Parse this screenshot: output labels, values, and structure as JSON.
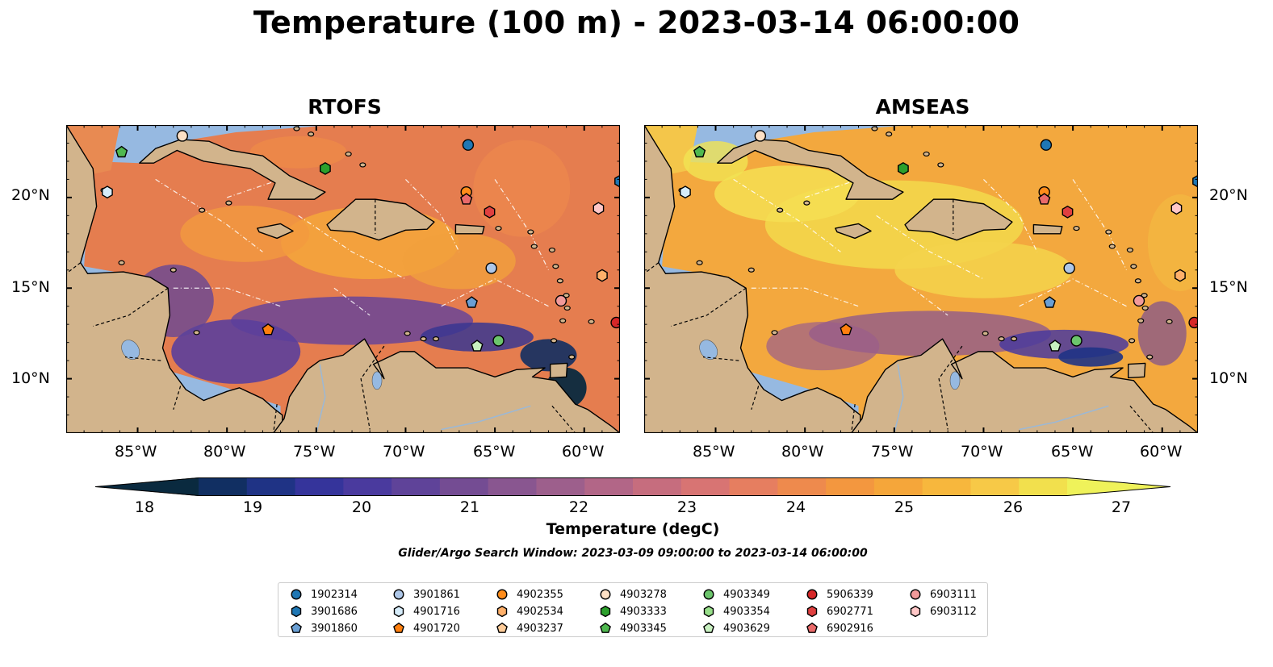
{
  "figure": {
    "title": "Temperature (100 m) - 2023-03-14 06:00:00",
    "search_window": "Glider/Argo Search Window: 2023-03-09 09:00:00 to 2023-03-14 06:00:00"
  },
  "map_extent": {
    "lon": [
      -89,
      -58
    ],
    "lat": [
      7,
      24
    ]
  },
  "panels": [
    {
      "id": "rtofs",
      "title": "RTOFS",
      "x_tick_labels": [
        "85°W",
        "80°W",
        "75°W",
        "70°W",
        "65°W",
        "60°W"
      ],
      "y_tick_labels": [
        "20°N",
        "15°N",
        "10°N"
      ]
    },
    {
      "id": "amseas",
      "title": "AMSEAS",
      "x_tick_labels": [
        "85°W",
        "80°W",
        "75°W",
        "70°W",
        "65°W",
        "60°W"
      ],
      "y_tick_labels": [
        "20°N",
        "15°N",
        "10°N"
      ]
    }
  ],
  "colorbar": {
    "label": "Temperature (degC)",
    "ticks": [
      "18",
      "19",
      "20",
      "21",
      "22",
      "23",
      "24",
      "25",
      "26",
      "27"
    ],
    "range": [
      18,
      27
    ],
    "extend": "both",
    "colors": [
      "#0a2a3f",
      "#112f62",
      "#1f3385",
      "#35349b",
      "#4a3a9e",
      "#5f4399",
      "#744c93",
      "#895690",
      "#9d5f8c",
      "#b26687",
      "#c66d7e",
      "#d87473",
      "#e67e60",
      "#ee8a4d",
      "#f3973f",
      "#f5a63a",
      "#f7b73d",
      "#f7c947",
      "#f2e04d",
      "#eff25a"
    ]
  },
  "colors": {
    "land": "#d2b48c",
    "outside_ocean": "#96b9e1",
    "rtofs_ocean": "#e57d4f",
    "amseas_ocean": "#f3a83e"
  },
  "legend": {
    "items": [
      {
        "id": "1902314",
        "color": "#1f77b4",
        "shape": "circle"
      },
      {
        "id": "3901686",
        "color": "#1f77b4",
        "shape": "hexagon"
      },
      {
        "id": "3901860",
        "color": "#6a9fd4",
        "shape": "pentagon"
      },
      {
        "id": "3901861",
        "color": "#aec7e8",
        "shape": "circle"
      },
      {
        "id": "4901716",
        "color": "#d6ecfa",
        "shape": "hexagon"
      },
      {
        "id": "4901720",
        "color": "#ff7f0e",
        "shape": "pentagon"
      },
      {
        "id": "4902355",
        "color": "#ff8c1a",
        "shape": "circle"
      },
      {
        "id": "4902534",
        "color": "#ffb06a",
        "shape": "hexagon"
      },
      {
        "id": "4903237",
        "color": "#ffcc99",
        "shape": "pentagon"
      },
      {
        "id": "4903278",
        "color": "#fde0c5",
        "shape": "circle"
      },
      {
        "id": "4903333",
        "color": "#2ca02c",
        "shape": "hexagon"
      },
      {
        "id": "4903345",
        "color": "#4fb84f",
        "shape": "pentagon"
      },
      {
        "id": "4903349",
        "color": "#6cc56c",
        "shape": "circle"
      },
      {
        "id": "4903354",
        "color": "#98df8a",
        "shape": "hexagon"
      },
      {
        "id": "4903629",
        "color": "#c8f0c0",
        "shape": "pentagon"
      },
      {
        "id": "5906339",
        "color": "#d62728",
        "shape": "circle"
      },
      {
        "id": "6902771",
        "color": "#e04040",
        "shape": "hexagon"
      },
      {
        "id": "6902916",
        "color": "#ea6a6a",
        "shape": "pentagon"
      },
      {
        "id": "6903111",
        "color": "#f29a9a",
        "shape": "circle"
      },
      {
        "id": "6903112",
        "color": "#ffc7c7",
        "shape": "hexagon"
      }
    ]
  },
  "floats": [
    {
      "lon": -66.5,
      "lat": 22.9,
      "id": "1902314"
    },
    {
      "lon": -58.0,
      "lat": 20.9,
      "id": "3901686"
    },
    {
      "lon": -66.3,
      "lat": 14.2,
      "id": "3901860"
    },
    {
      "lon": -65.2,
      "lat": 16.1,
      "id": "3901861"
    },
    {
      "lon": -86.7,
      "lat": 20.3,
      "id": "4901716"
    },
    {
      "lon": -77.7,
      "lat": 12.7,
      "id": "4901720"
    },
    {
      "lon": -66.6,
      "lat": 20.3,
      "id": "4902355"
    },
    {
      "lon": -59.0,
      "lat": 15.7,
      "id": "4902534"
    },
    {
      "lon": -82.5,
      "lat": 23.4,
      "id": "4903278"
    },
    {
      "lon": -74.5,
      "lat": 21.6,
      "id": "4903333"
    },
    {
      "lon": -85.9,
      "lat": 22.5,
      "id": "4903345"
    },
    {
      "lon": -64.8,
      "lat": 12.1,
      "id": "4903349"
    },
    {
      "lon": -66.0,
      "lat": 11.8,
      "id": "4903629"
    },
    {
      "lon": -58.2,
      "lat": 13.1,
      "id": "5906339"
    },
    {
      "lon": -65.3,
      "lat": 19.2,
      "id": "6902771"
    },
    {
      "lon": -66.6,
      "lat": 19.9,
      "id": "6902916"
    },
    {
      "lon": -61.3,
      "lat": 14.3,
      "id": "6903111"
    },
    {
      "lon": -59.2,
      "lat": 19.4,
      "id": "6903112"
    }
  ]
}
